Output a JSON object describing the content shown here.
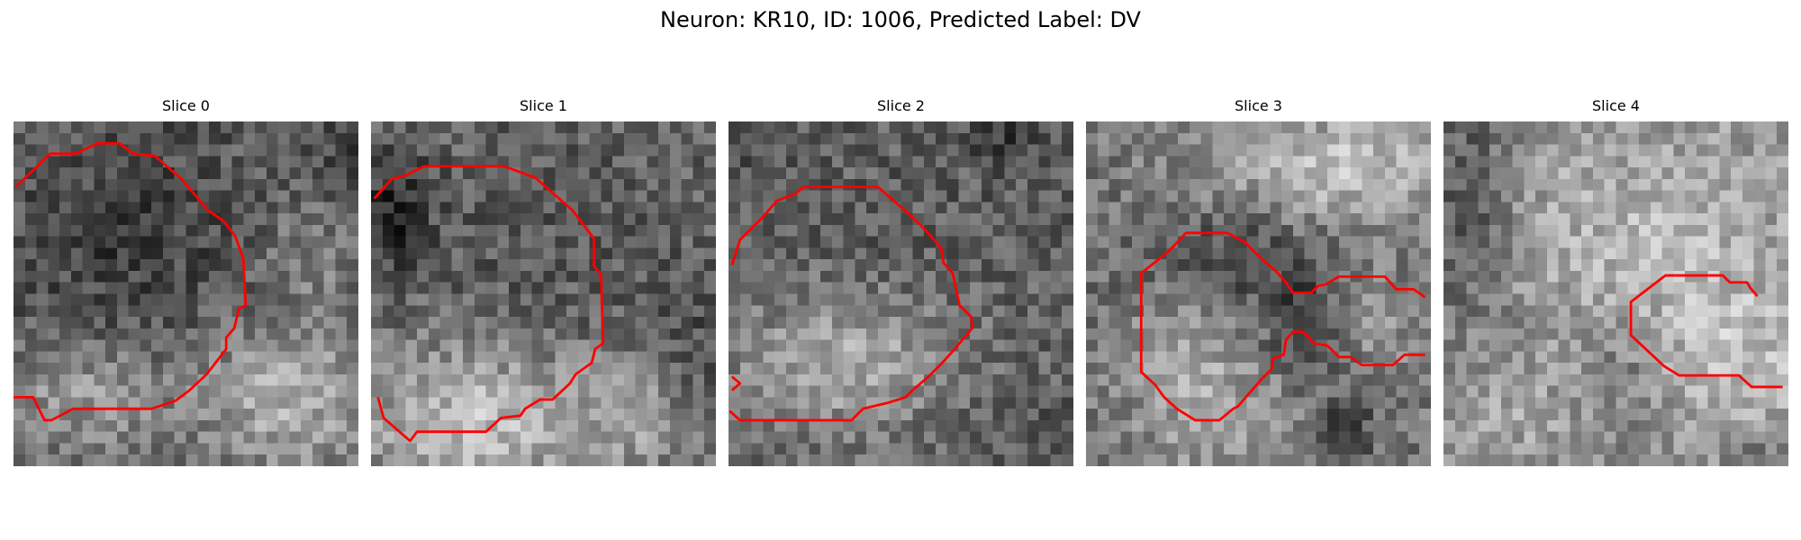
{
  "figure": {
    "title": "Neuron: KR10, ID: 1006, Predicted Label: DV"
  },
  "colors": {
    "contour": "#ff0000",
    "background": "#ffffff"
  },
  "panels": [
    {
      "title": "Slice 0"
    },
    {
      "title": "Slice 1"
    },
    {
      "title": "Slice 2"
    },
    {
      "title": "Slice 3"
    },
    {
      "title": "Slice 4"
    }
  ]
}
